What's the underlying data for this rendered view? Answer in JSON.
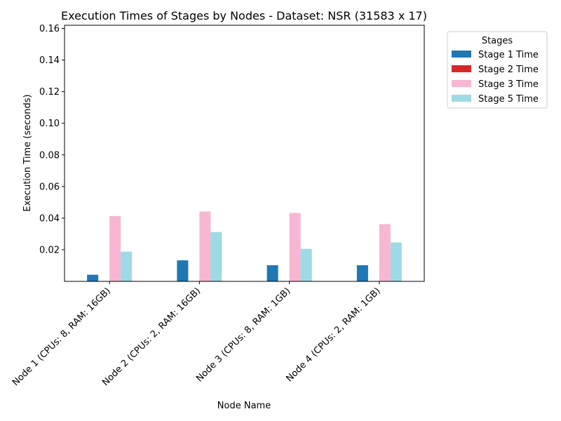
{
  "chart_data": {
    "type": "bar",
    "title": "Execution Times of Stages by Nodes - Dataset: NSR (31583 x 17)",
    "xlabel": "Node Name",
    "ylabel": "Execution Time (seconds)",
    "categories": [
      "Node 1 (CPUs: 8, RAM: 16GB)",
      "Node 2 (CPUs: 2, RAM: 16GB)",
      "Node 3 (CPUs: 8, RAM: 1GB)",
      "Node 4 (CPUs: 2, RAM: 1GB)"
    ],
    "series": [
      {
        "name": "Stage 1 Time",
        "color": "#1f77b4",
        "values": [
          0.0042,
          0.0133,
          0.0102,
          0.0102
        ]
      },
      {
        "name": "Stage 2 Time",
        "color": "#d62728",
        "values": [
          0.0,
          0.0,
          0.0,
          0.0
        ]
      },
      {
        "name": "Stage 3 Time",
        "color": "#f7b6d2",
        "values": [
          0.0413,
          0.0442,
          0.0433,
          0.0362
        ]
      },
      {
        "name": "Stage 5 Time",
        "color": "#9edae5",
        "values": [
          0.0188,
          0.0312,
          0.0206,
          0.0246
        ]
      }
    ],
    "ylim": [
      0.0,
      0.162
    ],
    "yticks": [
      "0.02",
      "0.04",
      "0.06",
      "0.08",
      "0.10",
      "0.12",
      "0.14",
      "0.16"
    ],
    "legend": {
      "title": "Stages",
      "placement": "outside-top-right"
    },
    "grid": false
  }
}
